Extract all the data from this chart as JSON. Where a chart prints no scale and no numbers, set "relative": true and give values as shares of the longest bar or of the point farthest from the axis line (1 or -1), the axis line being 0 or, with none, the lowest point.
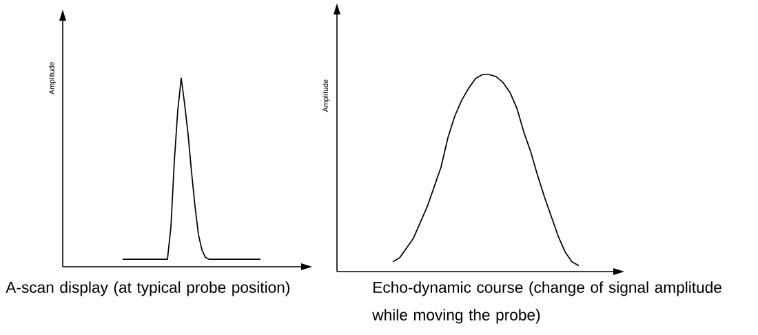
{
  "chart_data": [
    {
      "type": "line",
      "relative": true,
      "ylabel": "Amplitude",
      "color": "#000000",
      "categories": [
        null,
        null,
        null,
        null,
        null,
        null,
        null,
        null,
        null,
        null,
        null,
        null,
        null,
        null,
        null,
        null,
        null,
        null,
        null,
        null,
        null,
        null,
        null,
        null,
        null,
        null,
        null,
        null,
        null,
        null,
        null,
        null,
        null,
        null,
        null,
        null,
        null,
        null,
        null,
        null,
        null,
        null,
        null,
        null,
        null,
        null,
        null,
        null,
        null,
        null,
        null,
        null,
        null,
        null,
        null,
        null,
        null,
        null,
        null,
        null,
        null,
        null,
        null,
        null,
        null,
        null,
        null,
        null,
        null,
        null,
        null
      ],
      "values": [
        null,
        null,
        null,
        null,
        null,
        null,
        null,
        null,
        null,
        null,
        null,
        null,
        null,
        null,
        null,
        null,
        null,
        0.04,
        0.04,
        0.04,
        0.04,
        0.04,
        0.04,
        0.04,
        0.04,
        0.04,
        0.04,
        0.04,
        0.04,
        0.04,
        0.04,
        0.21,
        0.56,
        0.83,
        1,
        0.86,
        0.7,
        0.5,
        0.32,
        0.17,
        0.09,
        0.05,
        0.04,
        0.04,
        0.04,
        0.04,
        0.04,
        0.04,
        0.04,
        0.04,
        0.04,
        0.04,
        0.04,
        0.04,
        0.04,
        0.04,
        0.04,
        0.04,
        null,
        null,
        null,
        null,
        null,
        null,
        null,
        null,
        null,
        null,
        null,
        null,
        null
      ],
      "annotations": [
        "A-scan display (at typical probe position)"
      ]
    },
    {
      "type": "line",
      "relative": true,
      "ylabel": "Amplitude",
      "color": "#000000",
      "categories": [
        null,
        null,
        null,
        null,
        null,
        null,
        null,
        null,
        null,
        null,
        null,
        null,
        null,
        null,
        null,
        null,
        null,
        null,
        null,
        null,
        null,
        null,
        null,
        null,
        null,
        null,
        null,
        null,
        null,
        null,
        null,
        null,
        null,
        null,
        null,
        null,
        null,
        null,
        null,
        null,
        null
      ],
      "values": [
        null,
        null,
        null,
        null,
        null,
        null,
        null,
        null,
        0.05,
        0.07,
        0.12,
        0.17,
        0.25,
        0.33,
        0.43,
        0.53,
        0.68,
        0.79,
        0.87,
        0.93,
        0.98,
        1.0,
        1.0,
        0.99,
        0.96,
        0.91,
        0.83,
        0.71,
        0.61,
        0.49,
        0.38,
        0.28,
        0.18,
        0.1,
        0.05,
        0.03,
        null,
        null,
        null,
        null,
        null
      ],
      "annotations": [
        "Echo-dynamic course (change of signal amplitude while moving the probe)"
      ]
    }
  ]
}
